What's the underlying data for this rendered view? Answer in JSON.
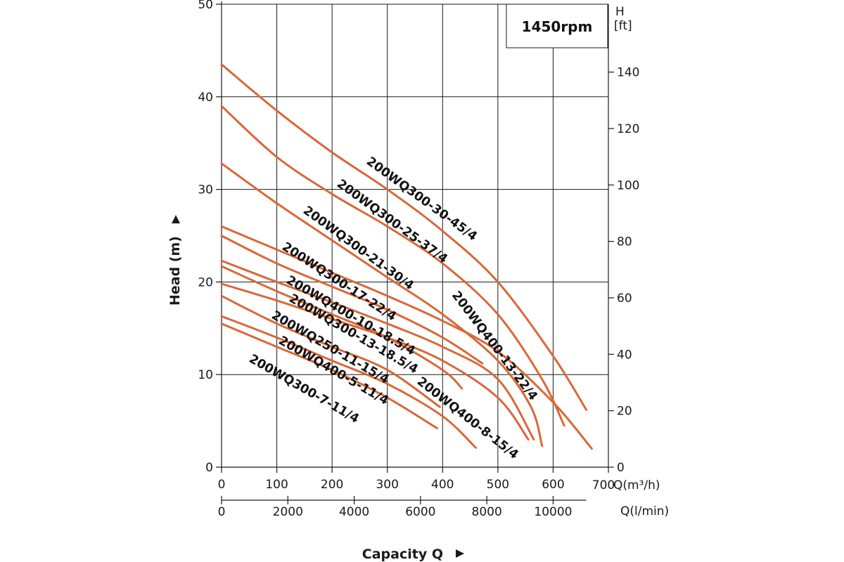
{
  "chart_data": {
    "type": "line",
    "title": "",
    "speed_label": "1450rpm",
    "xlabel": "Capacity Q",
    "ylabel": "Head (m)",
    "x_unit_primary": "Q(m³/h)",
    "x_unit_secondary": "Q(l/min)",
    "y_right_label_top": "H",
    "y_right_label_unit": "[ft]",
    "xlim": [
      0,
      700
    ],
    "ylim": [
      0,
      50
    ],
    "x_ticks": [
      0,
      100,
      200,
      300,
      400,
      500,
      600,
      700
    ],
    "x_tick_labels": [
      "0",
      "100",
      "200",
      "300",
      "400",
      "500",
      "600",
      "700"
    ],
    "y_ticks": [
      0,
      10,
      20,
      30,
      40,
      50
    ],
    "y_tick_labels": [
      "0",
      "10",
      "20",
      "30",
      "40",
      "50"
    ],
    "x2_ticks_lmin": [
      0,
      2000,
      4000,
      6000,
      8000,
      10000
    ],
    "x2_tick_labels": [
      "0",
      "2000",
      "4000",
      "6000",
      "8000",
      "10000"
    ],
    "y2_ticks_ft": [
      0,
      20,
      40,
      60,
      80,
      100,
      120,
      140
    ],
    "y2_tick_labels": [
      "0",
      "20",
      "40",
      "60",
      "80",
      "100",
      "120",
      "140"
    ],
    "grid": true,
    "curve_color": "#d6693a",
    "series": [
      {
        "name": "200WQ300-30-45/4",
        "x": [
          0,
          100,
          200,
          300,
          400,
          500,
          600,
          660
        ],
        "y": [
          43.5,
          38.5,
          34,
          30,
          25.5,
          20,
          12,
          6.2
        ]
      },
      {
        "name": "200WQ300-25-37/4",
        "x": [
          0,
          100,
          200,
          300,
          400,
          500,
          580,
          620
        ],
        "y": [
          39,
          33.5,
          29.5,
          26,
          22,
          16.5,
          9.5,
          4.5
        ]
      },
      {
        "name": "200WQ300-21-30/4",
        "x": [
          0,
          100,
          200,
          300,
          400,
          500,
          560,
          580
        ],
        "y": [
          32.8,
          28.5,
          24.5,
          20.5,
          16.5,
          11.5,
          6.5,
          2.3
        ]
      },
      {
        "name": "200WQ400-13-22/4",
        "x": [
          0,
          100,
          200,
          300,
          400,
          500,
          600,
          670
        ],
        "y": [
          26,
          23.5,
          21,
          18.5,
          15.8,
          12.5,
          7,
          2
        ]
      },
      {
        "name": "200WQ300-17-22/4",
        "x": [
          0,
          100,
          200,
          300,
          400,
          472
        ],
        "y": [
          25,
          22,
          19.5,
          17,
          14,
          11.2
        ]
      },
      {
        "name": "200WQ400-10-18.5/4",
        "x": [
          0,
          100,
          200,
          300,
          400,
          500,
          565
        ],
        "y": [
          22.3,
          20,
          17.8,
          15.5,
          13,
          9.5,
          3
        ]
      },
      {
        "name": "200WQ300-13-18.5/4",
        "x": [
          0,
          100,
          200,
          300,
          400,
          435
        ],
        "y": [
          21.7,
          19,
          16.5,
          14,
          10.5,
          8.5
        ]
      },
      {
        "name": "200WQ400-8-15/4",
        "x": [
          0,
          100,
          200,
          300,
          400,
          500,
          555
        ],
        "y": [
          19.8,
          18,
          16,
          14,
          11.5,
          7.5,
          3
        ]
      },
      {
        "name": "200WQ250-11-15/4",
        "x": [
          0,
          100,
          200,
          300,
          395
        ],
        "y": [
          18.5,
          15.5,
          13,
          10.5,
          6.5
        ]
      },
      {
        "name": "200WQ400-5-11/4",
        "x": [
          0,
          100,
          200,
          300,
          400,
          460
        ],
        "y": [
          16.3,
          14,
          11.5,
          9,
          5.5,
          2.1
        ]
      },
      {
        "name": "200WQ300-7-11/4",
        "x": [
          0,
          100,
          200,
          300,
          390
        ],
        "y": [
          15.5,
          13,
          10.5,
          7.5,
          4.2
        ]
      }
    ]
  }
}
